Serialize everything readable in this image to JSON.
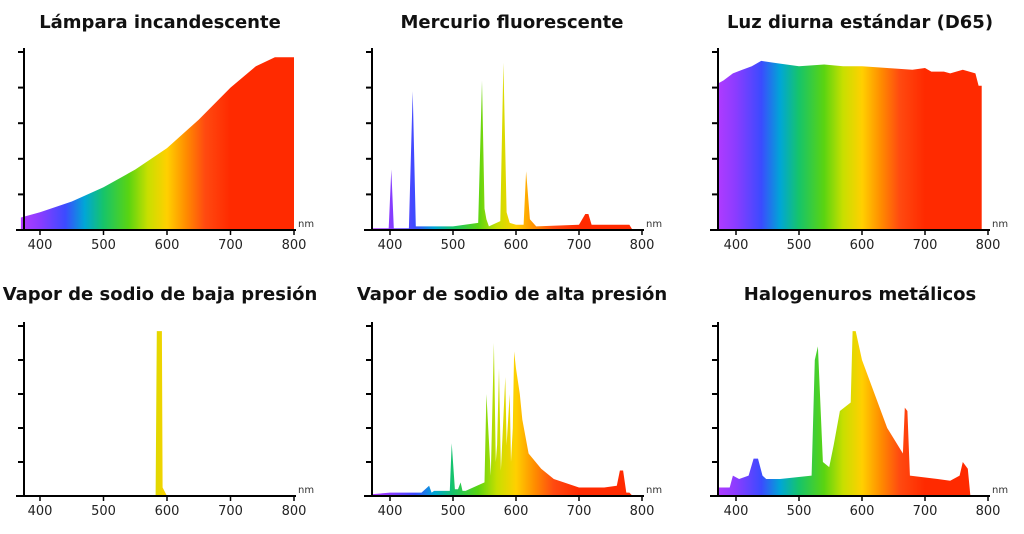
{
  "colors": {
    "axis": "#000000",
    "text": "#111111"
  },
  "spectrum_stops": [
    {
      "nm": 370,
      "color": "#b23bff"
    },
    {
      "nm": 400,
      "color": "#8a3cff"
    },
    {
      "nm": 440,
      "color": "#3b4bff"
    },
    {
      "nm": 470,
      "color": "#00a6d6"
    },
    {
      "nm": 500,
      "color": "#16c46a"
    },
    {
      "nm": 540,
      "color": "#5ad411"
    },
    {
      "nm": 570,
      "color": "#c8df00"
    },
    {
      "nm": 600,
      "color": "#ffd000"
    },
    {
      "nm": 630,
      "color": "#ff8c00"
    },
    {
      "nm": 660,
      "color": "#ff4a10"
    },
    {
      "nm": 700,
      "color": "#ff2a00"
    },
    {
      "nm": 800,
      "color": "#ff2a00"
    }
  ],
  "chart_data": [
    {
      "type": "area",
      "title": "Lámpara incandescente",
      "xlabel": "nm",
      "xlim": [
        370,
        800
      ],
      "ylim": [
        0,
        100
      ],
      "xticks": [
        400,
        500,
        600,
        700,
        800
      ],
      "yticks": [
        0,
        20,
        40,
        60,
        80,
        100
      ],
      "x": [
        370,
        400,
        450,
        500,
        550,
        600,
        650,
        700,
        740,
        770,
        800
      ],
      "y": [
        7,
        10,
        16,
        24,
        34,
        46,
        62,
        80,
        92,
        97,
        97
      ]
    },
    {
      "type": "area",
      "title": "Mercurio fluorescente",
      "xlabel": "nm",
      "xlim": [
        370,
        790
      ],
      "ylim": [
        0,
        100
      ],
      "xticks": [
        400,
        500,
        600,
        700,
        800
      ],
      "yticks": [
        0,
        20,
        40,
        60,
        80,
        100
      ],
      "x": [
        370,
        398,
        402,
        406,
        430,
        436,
        441,
        490,
        500,
        540,
        546,
        550,
        553,
        557,
        575,
        580,
        585,
        590,
        600,
        612,
        616,
        622,
        632,
        700,
        710,
        715,
        720,
        760,
        780,
        785
      ],
      "y": [
        1,
        1,
        34,
        1,
        1,
        78,
        2,
        2,
        2,
        4,
        84,
        12,
        6,
        2,
        5,
        94,
        10,
        4,
        3,
        3,
        33,
        6,
        2,
        3,
        9,
        9,
        3,
        3,
        3,
        0
      ]
    },
    {
      "type": "area",
      "title": "Luz diurna estándar (D65)",
      "xlabel": "nm",
      "xlim": [
        370,
        800
      ],
      "ylim": [
        0,
        100
      ],
      "xticks": [
        400,
        500,
        600,
        700,
        800
      ],
      "yticks": [
        0,
        20,
        40,
        60,
        80,
        100
      ],
      "x": [
        370,
        380,
        395,
        410,
        425,
        440,
        460,
        500,
        540,
        570,
        600,
        640,
        680,
        700,
        710,
        730,
        740,
        760,
        780,
        785,
        790
      ],
      "y": [
        82,
        84,
        88,
        90,
        92,
        95,
        94,
        92,
        93,
        92,
        92,
        91,
        90,
        91,
        89,
        89,
        88,
        90,
        88,
        81,
        81
      ]
    },
    {
      "type": "area",
      "title": "Vapor de sodio de baja presión",
      "xlabel": "nm",
      "xlim": [
        370,
        800
      ],
      "ylim": [
        0,
        100
      ],
      "xticks": [
        400,
        500,
        600,
        700,
        800
      ],
      "yticks": [
        0,
        20,
        40,
        60,
        80,
        100
      ],
      "x": [
        370,
        582,
        584,
        592,
        593,
        600,
        800
      ],
      "y": [
        0,
        0,
        97,
        97,
        5,
        0,
        0
      ]
    },
    {
      "type": "area",
      "title": "Vapor de sodio de alta presión",
      "xlabel": "nm",
      "xlim": [
        370,
        790
      ],
      "ylim": [
        0,
        100
      ],
      "xticks": [
        400,
        500,
        600,
        700,
        800
      ],
      "yticks": [
        0,
        20,
        40,
        60,
        80,
        100
      ],
      "x": [
        370,
        400,
        450,
        462,
        466,
        470,
        495,
        498,
        503,
        508,
        512,
        515,
        520,
        550,
        553,
        560,
        565,
        568,
        570,
        573,
        576,
        583,
        585,
        590,
        592,
        595,
        597,
        600,
        606,
        610,
        620,
        640,
        660,
        700,
        740,
        760,
        765,
        770,
        775,
        780,
        785
      ],
      "y": [
        1,
        2,
        2,
        6,
        2,
        3,
        3,
        31,
        4,
        4,
        8,
        3,
        3,
        8,
        60,
        12,
        90,
        20,
        30,
        75,
        15,
        70,
        30,
        60,
        20,
        40,
        85,
        75,
        60,
        45,
        25,
        16,
        10,
        5,
        5,
        6,
        15,
        15,
        2,
        2,
        0
      ]
    },
    {
      "type": "area",
      "title": "Halogenuros metálicos",
      "xlabel": "nm",
      "xlim": [
        370,
        800
      ],
      "ylim": [
        0,
        100
      ],
      "xticks": [
        400,
        500,
        600,
        700,
        800
      ],
      "yticks": [
        0,
        20,
        40,
        60,
        80,
        100
      ],
      "x": [
        370,
        390,
        395,
        405,
        420,
        428,
        435,
        442,
        448,
        470,
        520,
        525,
        530,
        538,
        548,
        555,
        565,
        582,
        585,
        590,
        600,
        640,
        665,
        668,
        672,
        676,
        720,
        740,
        755,
        760,
        768,
        772
      ],
      "y": [
        5,
        5,
        12,
        10,
        12,
        22,
        22,
        12,
        10,
        10,
        12,
        80,
        88,
        20,
        17,
        30,
        50,
        55,
        97,
        97,
        80,
        40,
        25,
        52,
        50,
        12,
        10,
        9,
        12,
        20,
        16,
        0
      ]
    }
  ],
  "tick_labels": [
    "400",
    "500",
    "600",
    "700",
    "800"
  ],
  "unit": "nm"
}
